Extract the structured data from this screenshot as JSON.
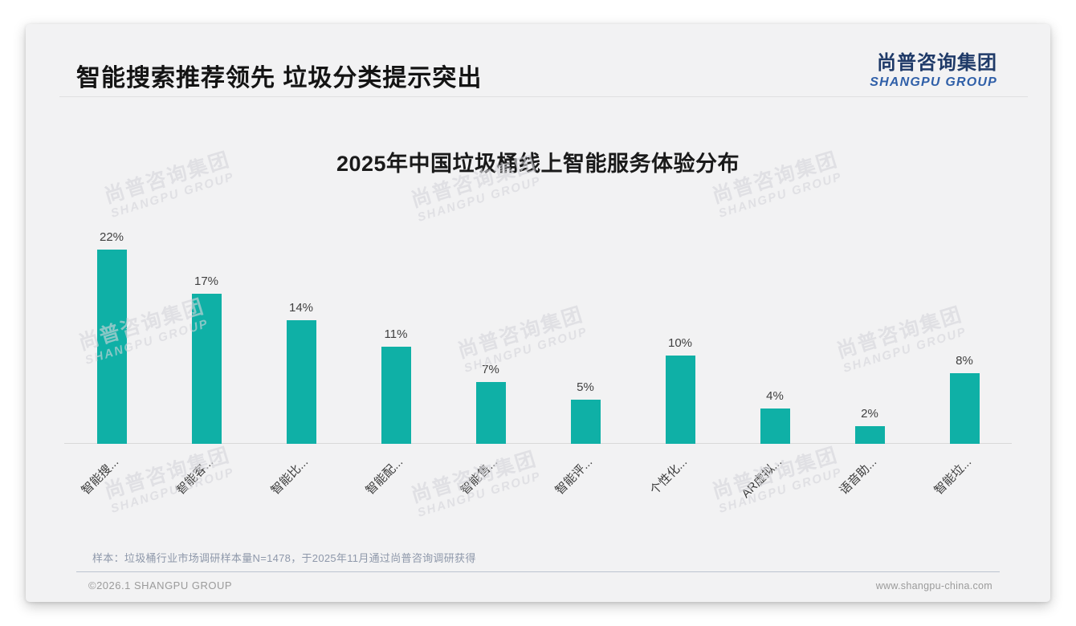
{
  "header": {
    "title": "智能搜索推荐领先 垃圾分类提示突出",
    "logo_cn": "尚普咨询集团",
    "logo_en": "SHANGPU GROUP"
  },
  "chart_data": {
    "type": "bar",
    "title": "2025年中国垃圾桶线上智能服务体验分布",
    "categories": [
      "智能搜...",
      "智能客...",
      "智能比...",
      "智能配...",
      "智能售...",
      "智能评...",
      "个性化...",
      "AR虚拟...",
      "语音助...",
      "智能垃..."
    ],
    "values": [
      22,
      17,
      14,
      11,
      7,
      5,
      10,
      4,
      2,
      8
    ],
    "value_labels": [
      "22%",
      "17%",
      "14%",
      "11%",
      "7%",
      "5%",
      "10%",
      "4%",
      "2%",
      "8%"
    ],
    "unit": "%",
    "ylim": [
      0,
      24
    ],
    "grid": false,
    "legend_position": "none",
    "xlabel": "",
    "ylabel": "",
    "xlabel_rotation_deg": 45,
    "bar_color": "#0FB0A6"
  },
  "watermark": {
    "line1": "尚普咨询集团",
    "line2": "SHANGPU GROUP"
  },
  "footnote": "样本：垃圾桶行业市场调研样本量N=1478，于2025年11月通过尚普咨询调研获得",
  "footer": {
    "left": "©2026.1 SHANGPU GROUP",
    "right": "www.shangpu-china.com"
  }
}
